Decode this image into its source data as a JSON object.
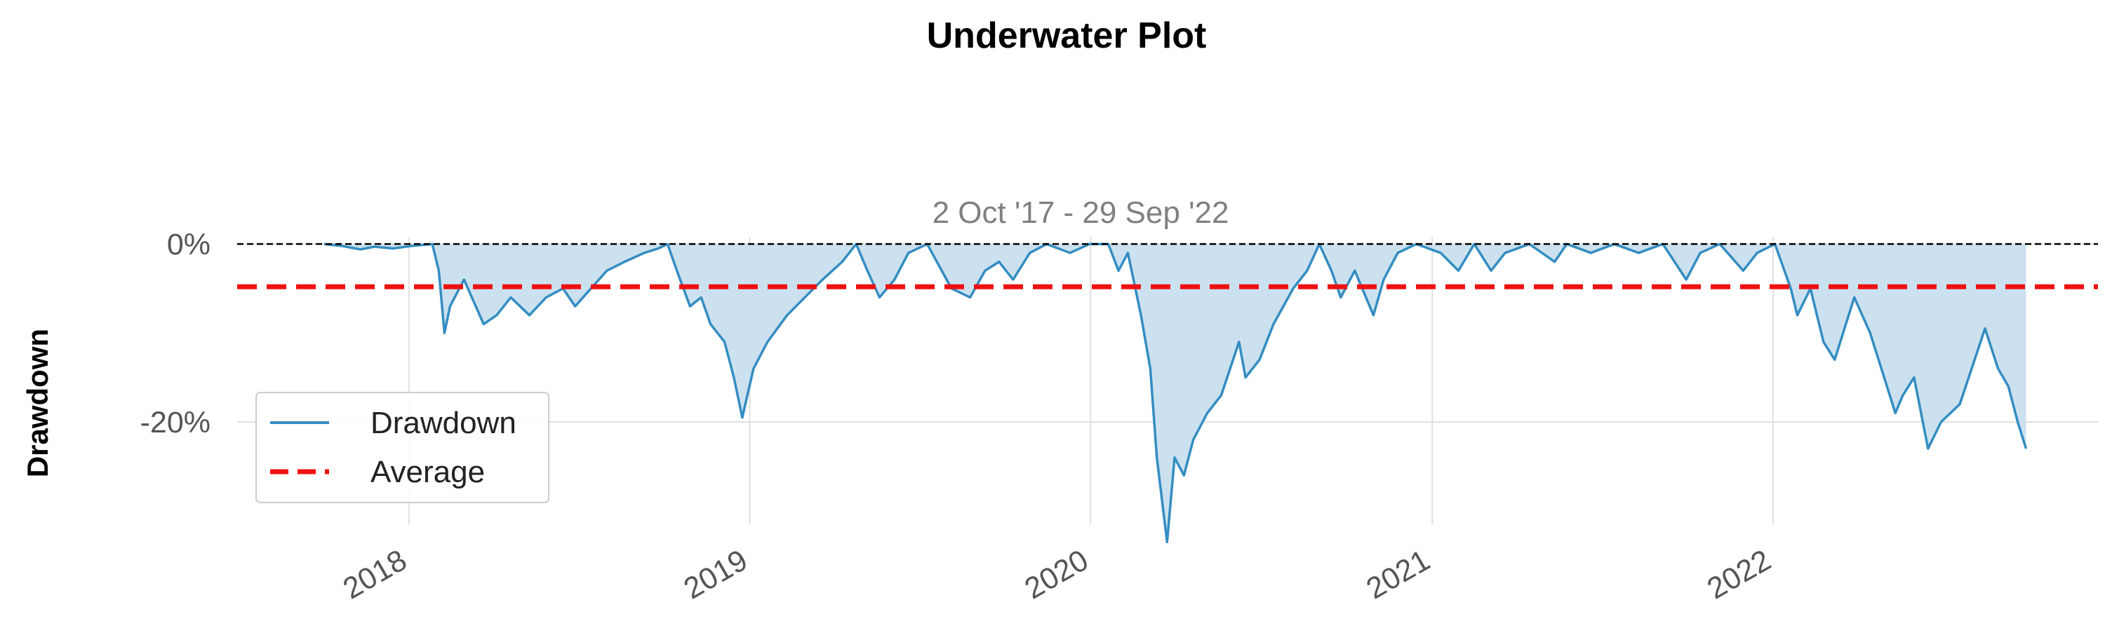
{
  "chart_data": {
    "type": "area",
    "title": "Underwater Plot",
    "subtitle": "2 Oct '17 - 29 Sep '22",
    "xlabel": "",
    "ylabel": "Drawdown",
    "x_range": [
      "2017-07-01",
      "2022-12-15"
    ],
    "ylim": [
      -31.5,
      0.8
    ],
    "yticks": [
      {
        "value": 0,
        "label": "0%"
      },
      {
        "value": -20,
        "label": "-20%"
      }
    ],
    "xticks": [
      {
        "date": "2018-01-01",
        "label": "2018"
      },
      {
        "date": "2019-01-01",
        "label": "2019"
      },
      {
        "date": "2020-01-01",
        "label": "2020"
      },
      {
        "date": "2021-01-01",
        "label": "2021"
      },
      {
        "date": "2022-01-01",
        "label": "2022"
      }
    ],
    "grid": true,
    "legend_position": "lower-left",
    "series": [
      {
        "name": "Drawdown",
        "type": "area",
        "color": "#348dc1",
        "fill": "#c6deed",
        "points": [
          [
            "2017-10-02",
            0
          ],
          [
            "2017-10-20",
            -0.2
          ],
          [
            "2017-11-10",
            -0.6
          ],
          [
            "2017-11-25",
            -0.3
          ],
          [
            "2017-12-15",
            -0.5
          ],
          [
            "2018-01-05",
            -0.2
          ],
          [
            "2018-01-26",
            0
          ],
          [
            "2018-02-02",
            -3
          ],
          [
            "2018-02-08",
            -10
          ],
          [
            "2018-02-14",
            -7
          ],
          [
            "2018-03-01",
            -4
          ],
          [
            "2018-03-22",
            -9
          ],
          [
            "2018-04-05",
            -8
          ],
          [
            "2018-04-20",
            -6
          ],
          [
            "2018-05-10",
            -8
          ],
          [
            "2018-05-28",
            -6
          ],
          [
            "2018-06-15",
            -5
          ],
          [
            "2018-06-28",
            -7
          ],
          [
            "2018-07-15",
            -5
          ],
          [
            "2018-08-01",
            -3
          ],
          [
            "2018-08-20",
            -2
          ],
          [
            "2018-09-10",
            -1
          ],
          [
            "2018-09-25",
            -0.5
          ],
          [
            "2018-10-05",
            0
          ],
          [
            "2018-10-15",
            -3
          ],
          [
            "2018-10-29",
            -7
          ],
          [
            "2018-11-10",
            -6
          ],
          [
            "2018-11-20",
            -9
          ],
          [
            "2018-12-05",
            -11
          ],
          [
            "2018-12-15",
            -15
          ],
          [
            "2018-12-24",
            -19.5
          ],
          [
            "2019-01-05",
            -14
          ],
          [
            "2019-01-20",
            -11
          ],
          [
            "2019-02-10",
            -8
          ],
          [
            "2019-03-01",
            -6
          ],
          [
            "2019-03-20",
            -4
          ],
          [
            "2019-04-10",
            -2
          ],
          [
            "2019-04-25",
            0
          ],
          [
            "2019-05-07",
            -3
          ],
          [
            "2019-05-20",
            -6
          ],
          [
            "2019-06-05",
            -4
          ],
          [
            "2019-06-20",
            -1
          ],
          [
            "2019-07-10",
            0
          ],
          [
            "2019-08-05",
            -5
          ],
          [
            "2019-08-25",
            -6
          ],
          [
            "2019-09-10",
            -3
          ],
          [
            "2019-09-25",
            -2
          ],
          [
            "2019-10-10",
            -4
          ],
          [
            "2019-10-28",
            -1
          ],
          [
            "2019-11-15",
            0
          ],
          [
            "2019-12-10",
            -1
          ],
          [
            "2019-12-31",
            0
          ],
          [
            "2020-01-20",
            0
          ],
          [
            "2020-01-31",
            -3
          ],
          [
            "2020-02-10",
            -1
          ],
          [
            "2020-02-24",
            -8
          ],
          [
            "2020-03-05",
            -14
          ],
          [
            "2020-03-12",
            -24
          ],
          [
            "2020-03-23",
            -33.5
          ],
          [
            "2020-03-31",
            -24
          ],
          [
            "2020-04-10",
            -26
          ],
          [
            "2020-04-20",
            -22
          ],
          [
            "2020-05-05",
            -19
          ],
          [
            "2020-05-20",
            -17
          ],
          [
            "2020-06-08",
            -11
          ],
          [
            "2020-06-15",
            -15
          ],
          [
            "2020-06-30",
            -13
          ],
          [
            "2020-07-15",
            -9
          ],
          [
            "2020-08-05",
            -5
          ],
          [
            "2020-08-20",
            -3
          ],
          [
            "2020-09-02",
            0
          ],
          [
            "2020-09-15",
            -3
          ],
          [
            "2020-09-25",
            -6
          ],
          [
            "2020-10-10",
            -3
          ],
          [
            "2020-10-30",
            -8
          ],
          [
            "2020-11-10",
            -4
          ],
          [
            "2020-11-25",
            -1
          ],
          [
            "2020-12-15",
            0
          ],
          [
            "2021-01-10",
            -1
          ],
          [
            "2021-01-29",
            -3
          ],
          [
            "2021-02-15",
            0
          ],
          [
            "2021-03-05",
            -3
          ],
          [
            "2021-03-20",
            -1
          ],
          [
            "2021-04-15",
            0
          ],
          [
            "2021-05-12",
            -2
          ],
          [
            "2021-05-25",
            0
          ],
          [
            "2021-06-20",
            -1
          ],
          [
            "2021-07-15",
            0
          ],
          [
            "2021-08-10",
            -1
          ],
          [
            "2021-09-05",
            0
          ],
          [
            "2021-09-30",
            -4
          ],
          [
            "2021-10-15",
            -1
          ],
          [
            "2021-11-05",
            0
          ],
          [
            "2021-11-30",
            -3
          ],
          [
            "2021-12-15",
            -1
          ],
          [
            "2022-01-03",
            0
          ],
          [
            "2022-01-20",
            -5
          ],
          [
            "2022-01-27",
            -8
          ],
          [
            "2022-02-10",
            -5
          ],
          [
            "2022-02-24",
            -11
          ],
          [
            "2022-03-08",
            -13
          ],
          [
            "2022-03-20",
            -9
          ],
          [
            "2022-03-29",
            -6
          ],
          [
            "2022-04-15",
            -10
          ],
          [
            "2022-04-30",
            -15
          ],
          [
            "2022-05-12",
            -19
          ],
          [
            "2022-05-20",
            -17
          ],
          [
            "2022-06-01",
            -15
          ],
          [
            "2022-06-16",
            -23
          ],
          [
            "2022-06-30",
            -20
          ],
          [
            "2022-07-20",
            -18
          ],
          [
            "2022-08-16",
            -9.5
          ],
          [
            "2022-08-30",
            -14
          ],
          [
            "2022-09-10",
            -16
          ],
          [
            "2022-09-20",
            -20
          ],
          [
            "2022-09-29",
            -23
          ]
        ]
      },
      {
        "name": "Average",
        "type": "hline",
        "value": -4.8,
        "color": "#ee1111",
        "dashed": true
      }
    ],
    "zero_line": {
      "value": 0,
      "color": "#000000",
      "dashed": true
    }
  }
}
